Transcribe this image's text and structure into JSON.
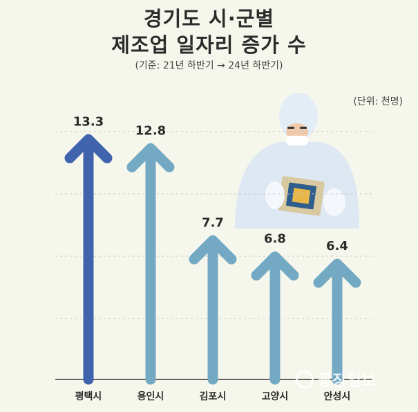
{
  "title": {
    "line1": "경기도 시·군별",
    "line2": "제조업 일자리 증가 수",
    "subtitle": "(기준: 21년 하반기 → 24년 하반기)",
    "unit": "(단위: 천명)"
  },
  "watermark": "광장일보",
  "colors": {
    "background": "#f6f7ec",
    "highlight_arrow": "#3f63ad",
    "arrow": "#74a9c4",
    "gridline": "#c8c8c8"
  },
  "chart_data": {
    "type": "bar",
    "categories": [
      "평택시",
      "용인시",
      "김포시",
      "고양시",
      "안성시"
    ],
    "values": [
      13.3,
      12.8,
      7.7,
      6.8,
      6.4
    ],
    "value_labels": [
      "13.3",
      "12.8",
      "7.7",
      "6.8",
      "6.4"
    ],
    "ylim": [
      0,
      14.5
    ],
    "grid": true,
    "highlight_index": 0
  }
}
